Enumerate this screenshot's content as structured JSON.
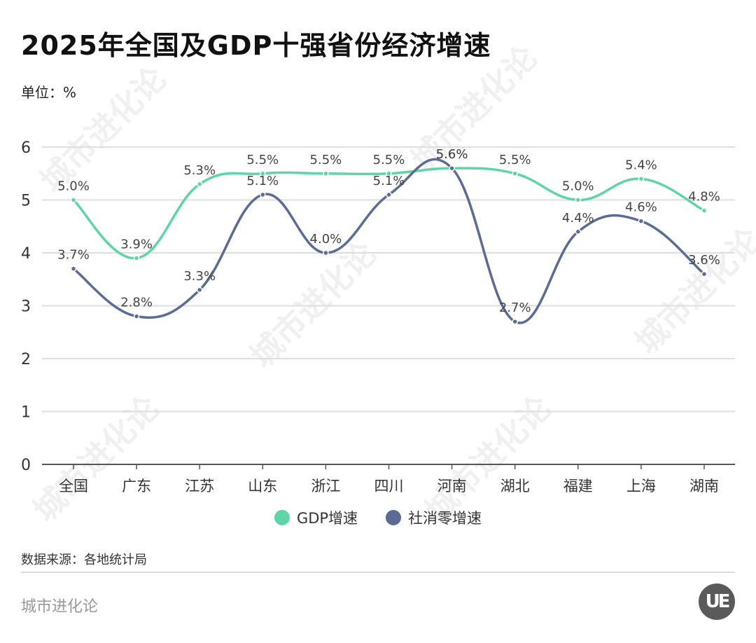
{
  "header": {
    "title": "2025年全国及GDP十强省份经济增速",
    "unit": "单位：%"
  },
  "footer": {
    "source": "数据来源：各地统计局",
    "brand": "城市进化论",
    "logo_text": "UE"
  },
  "watermark": {
    "text": "城市进化论"
  },
  "colors": {
    "gdp": "#5fd4a9",
    "retail": "#5a6b94",
    "grid": "#dedede",
    "axis": "#555555"
  },
  "chart_data": {
    "type": "line",
    "title": "2025年全国及GDP十强省份经济增速",
    "xlabel": "",
    "ylabel": "单位：%",
    "ylim": [
      0,
      6
    ],
    "yticks": [
      0,
      1,
      2,
      3,
      4,
      5,
      6
    ],
    "grid": true,
    "smooth": true,
    "legend_position": "bottom",
    "categories": [
      "全国",
      "广东",
      "江苏",
      "山东",
      "浙江",
      "四川",
      "河南",
      "湖北",
      "福建",
      "上海",
      "湖南"
    ],
    "series": [
      {
        "name": "GDP增速",
        "color": "#5fd4a9",
        "values": [
          5.0,
          3.9,
          5.3,
          5.5,
          5.5,
          5.5,
          5.6,
          5.5,
          5.0,
          5.4,
          4.8
        ]
      },
      {
        "name": "社消零增速",
        "color": "#5a6b94",
        "values": [
          3.7,
          2.8,
          3.3,
          5.1,
          4.0,
          5.1,
          5.6,
          2.7,
          4.4,
          4.6,
          3.6
        ]
      }
    ]
  }
}
